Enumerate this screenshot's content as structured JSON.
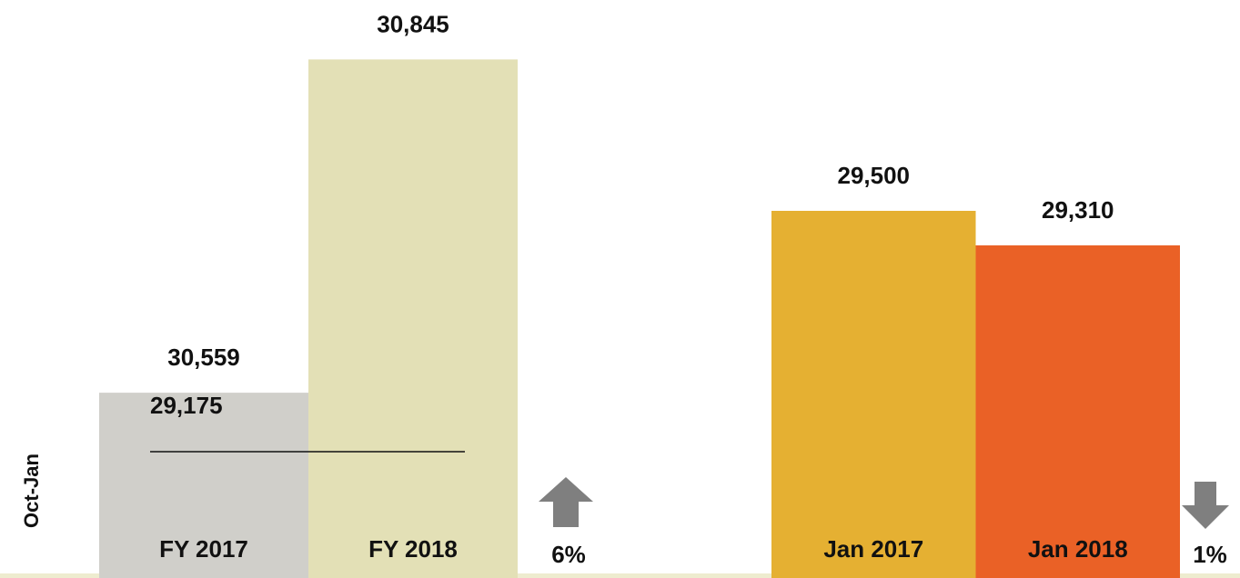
{
  "chart_data": [
    {
      "type": "bar",
      "y_label": "Oct-Jan",
      "categories": [
        "FY 2017",
        "FY 2018"
      ],
      "values": [
        30559,
        30845
      ],
      "value_labels": [
        "30,559",
        "30,845"
      ],
      "colors": [
        "#d0cfca",
        "#e3e0b6"
      ],
      "ylim": [
        30400,
        30896
      ],
      "annotation": "29,175",
      "change": "6%",
      "direction": "up"
    },
    {
      "type": "bar",
      "categories": [
        "Jan 2017",
        "Jan 2018"
      ],
      "values": [
        29500,
        29310
      ],
      "value_labels": [
        "29,500",
        "29,310"
      ],
      "colors": [
        "#e5b032",
        "#ea6126"
      ],
      "ylim": [
        27480,
        30660
      ],
      "change": "1%",
      "direction": "down"
    }
  ]
}
